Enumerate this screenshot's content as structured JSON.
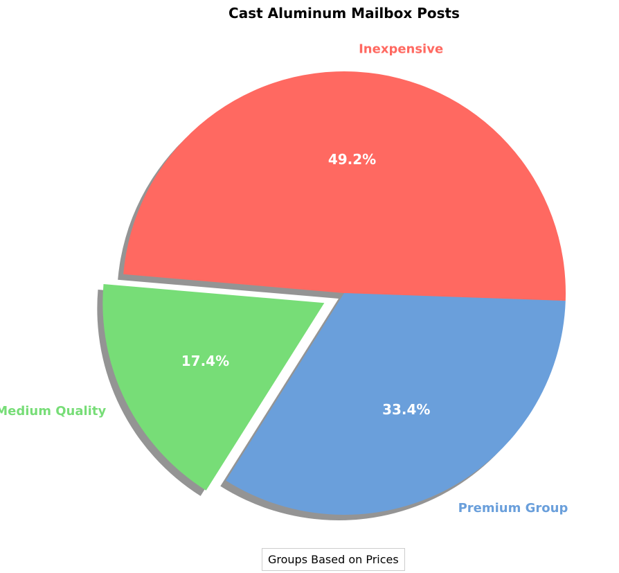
{
  "chart_data": {
    "type": "pie",
    "title": "Cast Aluminum Mailbox Posts",
    "legend_title": "Groups Based on Prices",
    "legend_placement": "bottom-center",
    "shadow": true,
    "slices": [
      {
        "label": "Inexpensive",
        "value": 49.2,
        "pct_label": "49.2%",
        "color": "#FF6961",
        "exploded": false
      },
      {
        "label": "Medium Quality",
        "value": 17.4,
        "pct_label": "17.4%",
        "color": "#77DD77",
        "exploded": true
      },
      {
        "label": "Premium Group",
        "value": 33.4,
        "pct_label": "33.4%",
        "color": "#6A9FDB",
        "exploded": false
      }
    ]
  }
}
